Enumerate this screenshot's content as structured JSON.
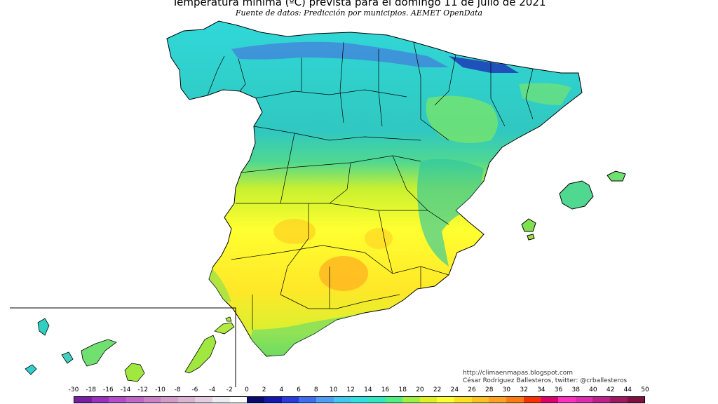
{
  "header": {
    "title": "Temperatura mínima (ºC) prevista para el domingo 11 de julio de 2021",
    "subtitle": "Fuente de datos: Predicción por municipios. AEMET OpenData"
  },
  "credits": {
    "blog": "http://climaenmapas.blogspot.com",
    "author": "César Rodríguez Ballesteros, twitter: @crballesteros"
  },
  "legend": {
    "ticks": [
      "-30",
      "-18",
      "-16",
      "-14",
      "-12",
      "-10",
      "-8",
      "-6",
      "-4",
      "-2",
      "0",
      "2",
      "4",
      "6",
      "8",
      "10",
      "12",
      "14",
      "16",
      "18",
      "20",
      "22",
      "24",
      "26",
      "28",
      "30",
      "32",
      "34",
      "36",
      "38",
      "40",
      "42",
      "44",
      "50"
    ],
    "colors": [
      "#7a1fa2",
      "#9b2fbf",
      "#b44cc9",
      "#c066c6",
      "#cc80c9",
      "#d49ac8",
      "#dcb4d2",
      "#e4cde0",
      "#ececf2",
      "#ffffff",
      "#0a0a6e",
      "#1515b0",
      "#2a3ae0",
      "#3f6df0",
      "#4f9cf5",
      "#40c8f0",
      "#30e0e0",
      "#30e8c0",
      "#50f080",
      "#a0f040",
      "#e0f020",
      "#ffff30",
      "#ffe020",
      "#ffc020",
      "#ffa020",
      "#ff7a10",
      "#ff3000",
      "#e0006a",
      "#ff2ec0",
      "#e02ab0",
      "#c0208a",
      "#a01860",
      "#801040"
    ]
  },
  "map": {
    "regions": [
      "peninsula",
      "baleares",
      "canarias"
    ]
  }
}
